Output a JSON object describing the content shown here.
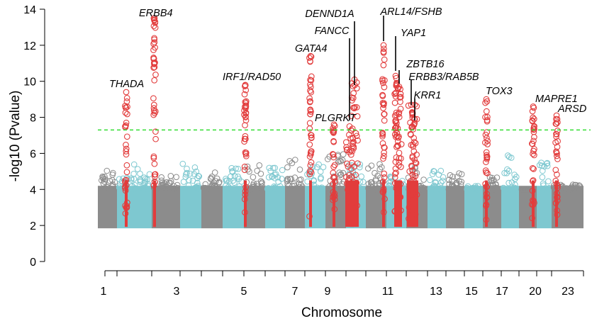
{
  "chart_data": {
    "type": "scatter",
    "subtype": "manhattan",
    "xlabel": "Chromosome",
    "ylabel": "-log10 (Pvalue)",
    "ylim": [
      0,
      14
    ],
    "yticks": [
      0,
      2,
      4,
      6,
      8,
      10,
      12,
      14
    ],
    "xtick_labels": [
      "1",
      "3",
      "5",
      "7",
      "9",
      "11",
      "13",
      "15",
      "17",
      "20",
      "23"
    ],
    "chromosomes": [
      "1",
      "2",
      "3",
      "4",
      "5",
      "6",
      "7",
      "8",
      "9",
      "10",
      "11",
      "12",
      "13",
      "14",
      "15",
      "16",
      "17",
      "18",
      "19",
      "20",
      "21",
      "22",
      "23"
    ],
    "chromosome_colors": [
      "#8c8c8c",
      "#7ec8d0"
    ],
    "background_max_values": [
      5.1,
      5.4,
      4.8,
      5.5,
      5.0,
      5.2,
      5.6,
      5.3,
      5.8,
      5.6,
      6.0,
      5.6,
      5.5,
      4.9,
      5.3,
      5.2,
      4.9,
      4.2,
      4.8,
      6.2,
      4.0,
      5.6,
      4.3
    ],
    "significance_threshold": 7.3,
    "threshold_color": "#33dd33",
    "hit_color": "#e23c3c",
    "loci": [
      {
        "label": "THADA",
        "chr": "2",
        "max": 9.4
      },
      {
        "label": "ERBB4",
        "chr": "2",
        "max": 13.5
      },
      {
        "label": "IRF1/RAD50",
        "chr": "5",
        "max": 9.8
      },
      {
        "label": "GATA4",
        "chr": "8",
        "max": 11.4
      },
      {
        "label": "PLGRKT",
        "chr": "9",
        "max": 7.6
      },
      {
        "label": "FANCC",
        "chr": "9",
        "max": 7.5
      },
      {
        "label": "DENND1A",
        "chr": "9",
        "max": 10.1
      },
      {
        "label": "ARL14/FSHB",
        "chr": "11",
        "max": 12.0
      },
      {
        "label": "YAP1",
        "chr": "11",
        "max": 10.3
      },
      {
        "label": "ZBTB16",
        "chr": "11",
        "max": 9.7
      },
      {
        "label": "ERBB3/RAB5B",
        "chr": "12",
        "max": 8.7
      },
      {
        "label": "KRR1",
        "chr": "12",
        "max": 8.7
      },
      {
        "label": "TOX3",
        "chr": "16",
        "max": 9.0
      },
      {
        "label": "MAPRE1",
        "chr": "20",
        "max": 8.6
      },
      {
        "label": "ARSD",
        "chr": "23",
        "max": 8.1
      }
    ]
  }
}
